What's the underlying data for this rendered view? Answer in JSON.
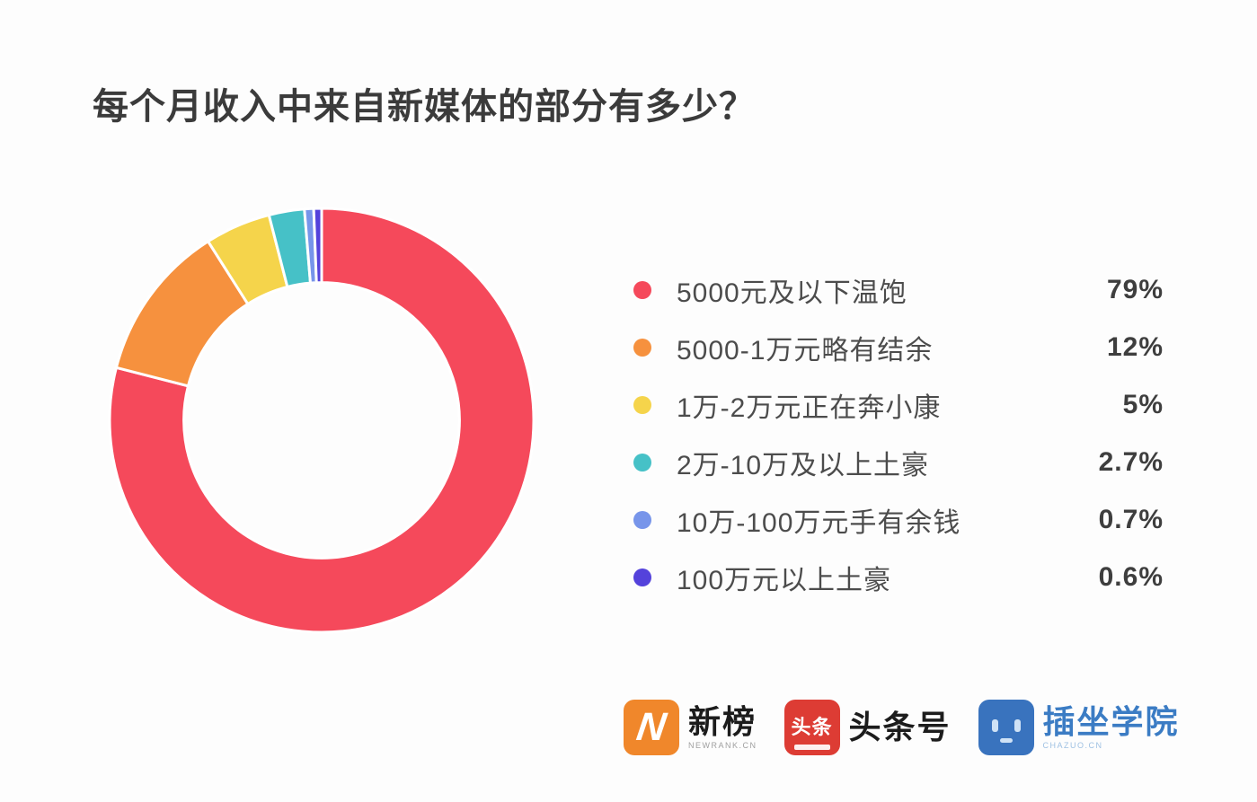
{
  "title": "每个月收入中来自新媒体的部分有多少？",
  "chart_data": {
    "type": "pie",
    "subtype": "donut",
    "title": "每个月收入中来自新媒体的部分有多少？",
    "legend_position": "right",
    "start_angle_deg": 0,
    "direction": "clockwise",
    "inner_radius_ratio": 0.65,
    "segments": [
      {
        "label": "5000元及以下温饱",
        "value": 79,
        "percent_label": "79%",
        "color": "#f5495b"
      },
      {
        "label": "5000-1万元略有结余",
        "value": 12,
        "percent_label": "12%",
        "color": "#f6913e"
      },
      {
        "label": "1万-2万元正在奔小康",
        "value": 5,
        "percent_label": "5%",
        "color": "#f5d44b"
      },
      {
        "label": "2万-10万及以上土豪",
        "value": 2.7,
        "percent_label": "2.7%",
        "color": "#46c1c7"
      },
      {
        "label": "10万-100万元手有余钱",
        "value": 0.7,
        "percent_label": "0.7%",
        "color": "#7795ea"
      },
      {
        "label": "100万元以上土豪",
        "value": 0.6,
        "percent_label": "0.6%",
        "color": "#5442db"
      }
    ]
  },
  "footer": {
    "logos": [
      {
        "text": "新榜",
        "subtext": "NEWRANK.CN",
        "icon_letter": "N",
        "icon_color": "#f0872b",
        "text_color": "#1c1c1c"
      },
      {
        "text": "头条号",
        "subtext": "",
        "icon_text": "头条",
        "icon_color": "#dd3c34",
        "text_color": "#1c1c1c"
      },
      {
        "text": "插坐学院",
        "subtext": "CHAZUO.CN",
        "icon_text": "",
        "icon_color": "#3973be",
        "text_color": "#3b7cc4"
      }
    ]
  },
  "colors": {
    "background": "#fdfdfd",
    "title_text": "#3b3b3b",
    "legend_text": "#4c4c4c",
    "percent_text": "#3e3e3e",
    "slice_gap": "#ffffff"
  }
}
